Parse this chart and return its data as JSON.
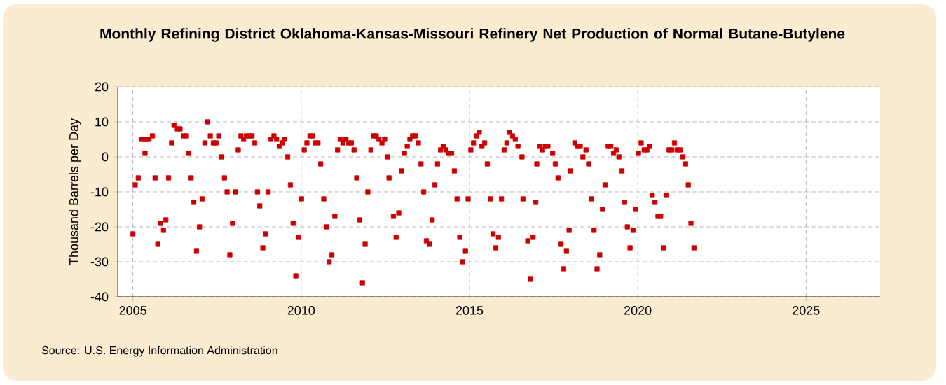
{
  "chart_data": {
    "type": "scatter",
    "title": "Monthly Refining District Oklahoma-Kansas-Missouri Refinery Net Production of Normal Butane-Butylene",
    "ylabel": "Thousand Barrels per Day",
    "annotations": [
      "Source: U.S. Energy Information Administration"
    ],
    "x": [
      2005.0,
      2005.07,
      2005.16,
      2005.25,
      2005.34,
      2005.36,
      2005.41,
      2005.48,
      2005.58,
      2005.66,
      2005.74,
      2005.82,
      2005.91,
      2005.98,
      2006.06,
      2006.15,
      2006.22,
      2006.32,
      2006.4,
      2006.51,
      2006.59,
      2006.65,
      2006.73,
      2006.81,
      2006.89,
      2006.98,
      2007.06,
      2007.14,
      2007.22,
      2007.3,
      2007.39,
      2007.47,
      2007.55,
      2007.63,
      2007.72,
      2007.8,
      2007.88,
      2007.96,
      2008.05,
      2008.13,
      2008.21,
      2008.29,
      2008.37,
      2008.46,
      2008.54,
      2008.62,
      2008.7,
      2008.77,
      2008.86,
      2008.94,
      2009.02,
      2009.1,
      2009.19,
      2009.27,
      2009.35,
      2009.43,
      2009.51,
      2009.6,
      2009.68,
      2009.76,
      2009.84,
      2009.92,
      2010.01,
      2010.09,
      2010.17,
      2010.26,
      2010.34,
      2010.42,
      2010.5,
      2010.58,
      2010.67,
      2010.75,
      2010.83,
      2010.91,
      2011.0,
      2011.08,
      2011.16,
      2011.24,
      2011.33,
      2011.41,
      2011.49,
      2011.57,
      2011.65,
      2011.74,
      2011.82,
      2011.9,
      2011.98,
      2012.07,
      2012.15,
      2012.23,
      2012.31,
      2012.4,
      2012.48,
      2012.56,
      2012.61,
      2012.74,
      2012.82,
      2012.9,
      2012.98,
      2013.07,
      2013.15,
      2013.23,
      2013.31,
      2013.4,
      2013.48,
      2013.56,
      2013.64,
      2013.72,
      2013.81,
      2013.89,
      2013.97,
      2014.05,
      2014.14,
      2014.22,
      2014.3,
      2014.38,
      2014.47,
      2014.55,
      2014.63,
      2014.71,
      2014.79,
      2014.88,
      2014.96,
      2015.04,
      2015.12,
      2015.21,
      2015.29,
      2015.37,
      2015.45,
      2015.53,
      2015.62,
      2015.7,
      2015.78,
      2015.86,
      2015.95,
      2016.03,
      2016.11,
      2016.19,
      2016.28,
      2016.36,
      2016.44,
      2016.56,
      2016.59,
      2016.73,
      2016.81,
      2016.89,
      2016.97,
      2017.0,
      2017.09,
      2017.17,
      2017.25,
      2017.33,
      2017.47,
      2017.55,
      2017.63,
      2017.72,
      2017.8,
      2017.88,
      2017.96,
      2018.0,
      2018.13,
      2018.21,
      2018.29,
      2018.37,
      2018.46,
      2018.54,
      2018.62,
      2018.7,
      2018.79,
      2018.87,
      2018.95,
      2019.03,
      2019.12,
      2019.2,
      2019.28,
      2019.36,
      2019.44,
      2019.53,
      2019.61,
      2019.69,
      2019.77,
      2019.86,
      2019.94,
      2020.02,
      2020.1,
      2020.19,
      2020.27,
      2020.35,
      2020.43,
      2020.51,
      2020.6,
      2020.68,
      2020.76,
      2020.84,
      2020.93,
      2021.01,
      2021.09,
      2021.17,
      2021.26,
      2021.34,
      2021.42,
      2021.5,
      2021.58,
      2021.67
    ],
    "values": [
      -22,
      -8,
      -6,
      5,
      5,
      1,
      5,
      5,
      6,
      -6,
      -25,
      -19,
      -21,
      -18,
      -6,
      4,
      9,
      8,
      8,
      6,
      6,
      1,
      -6,
      -13,
      -27,
      -20,
      -12,
      4,
      10,
      6,
      4,
      4,
      6,
      0,
      -6,
      -10,
      -28,
      -19,
      -10,
      2,
      6,
      5,
      6,
      6,
      6,
      4,
      -10,
      -14,
      -26,
      -22,
      -10,
      5,
      6,
      5,
      3,
      4,
      5,
      0,
      -8,
      -19,
      -34,
      -23,
      -12,
      2,
      4,
      6,
      6,
      4,
      4,
      -2,
      -12,
      -20,
      -30,
      -28,
      -17,
      2,
      5,
      4,
      5,
      4,
      4,
      2,
      -6,
      -18,
      -36,
      -25,
      -10,
      2,
      6,
      6,
      5,
      4,
      5,
      0,
      -6,
      -17,
      -23,
      -16,
      -4,
      1,
      3,
      5,
      6,
      6,
      4,
      -2,
      -10,
      -24,
      -25,
      -18,
      -8,
      -2,
      2,
      3,
      2,
      1,
      1,
      -4,
      -12,
      -23,
      -30,
      -27,
      -12,
      2,
      4,
      6,
      7,
      3,
      4,
      -2,
      -12,
      -22,
      -26,
      -23,
      -12,
      2,
      4,
      7,
      6,
      5,
      3,
      0,
      -12,
      -24,
      -35,
      -23,
      -13,
      -2,
      3,
      2,
      3,
      3,
      1,
      -2,
      -6,
      -25,
      -32,
      -27,
      -21,
      -4,
      4,
      3,
      3,
      0,
      2,
      -2,
      -12,
      -21,
      -32,
      -28,
      -15,
      -8,
      3,
      3,
      1,
      2,
      0,
      -4,
      -13,
      -20,
      -26,
      -21,
      -15,
      1,
      4,
      2,
      2,
      3,
      -11,
      -13,
      -17,
      -17,
      -26,
      -11,
      2,
      2,
      4,
      2,
      2,
      0,
      -2,
      -8,
      -19,
      -26
    ],
    "color": "#cc0000",
    "marker": "square",
    "xlim": [
      2004.55,
      2027.2
    ],
    "ylim": [
      -40,
      20
    ],
    "xticks": [
      2005,
      2010,
      2015,
      2020,
      2025
    ],
    "yticks": [
      -40,
      -30,
      -20,
      -10,
      0,
      10,
      20
    ],
    "grid": true
  }
}
